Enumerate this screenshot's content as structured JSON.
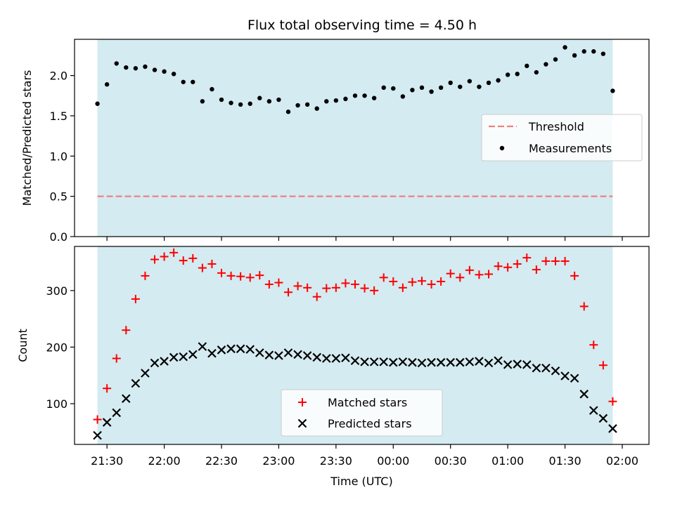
{
  "title": "Flux total observing time = 4.50 h",
  "colors": {
    "observing_span": "#d4ebf1",
    "threshold": "#f08080",
    "measurements": "#000000",
    "matched": "#ff0000",
    "predicted": "#000000"
  },
  "chart_data": [
    {
      "type": "scatter",
      "ylabel": "Matched/Predicted stars",
      "xlabel": "",
      "x_unit": "minutes after 21:00 UTC",
      "xlim": [
        "21:13",
        "02:14"
      ],
      "ylim": [
        0,
        2.45
      ],
      "yticks": [
        "0.0",
        "0.5",
        "1.0",
        "1.5",
        "2.0"
      ],
      "observing_span": [
        "21:25",
        "01:55"
      ],
      "threshold": 0.5,
      "legend": [
        "Threshold",
        "Measurements"
      ],
      "legend_placement": "center-right",
      "series": [
        {
          "name": "Measurements",
          "marker": "dot",
          "x": [
            "21:25",
            "21:30",
            "21:35",
            "21:40",
            "21:45",
            "21:50",
            "21:55",
            "22:00",
            "22:05",
            "22:10",
            "22:15",
            "22:20",
            "22:25",
            "22:30",
            "22:35",
            "22:40",
            "22:45",
            "22:50",
            "22:55",
            "23:00",
            "23:05",
            "23:10",
            "23:15",
            "23:20",
            "23:25",
            "23:30",
            "23:35",
            "23:40",
            "23:45",
            "23:50",
            "23:55",
            "00:00",
            "00:05",
            "00:10",
            "00:15",
            "00:20",
            "00:25",
            "00:30",
            "00:35",
            "00:40",
            "00:45",
            "00:50",
            "00:55",
            "01:00",
            "01:05",
            "01:10",
            "01:15",
            "01:20",
            "01:25",
            "01:30",
            "01:35",
            "01:40",
            "01:45",
            "01:50",
            "01:55"
          ],
          "values": [
            1.65,
            1.89,
            2.15,
            2.1,
            2.09,
            2.11,
            2.07,
            2.05,
            2.02,
            1.92,
            1.92,
            1.68,
            1.83,
            1.7,
            1.66,
            1.64,
            1.65,
            1.72,
            1.68,
            1.7,
            1.55,
            1.63,
            1.64,
            1.59,
            1.68,
            1.69,
            1.71,
            1.75,
            1.75,
            1.72,
            1.85,
            1.84,
            1.74,
            1.82,
            1.85,
            1.8,
            1.85,
            1.91,
            1.86,
            1.93,
            1.86,
            1.91,
            1.94,
            2.01,
            2.02,
            2.12,
            2.04,
            2.14,
            2.2,
            2.35,
            2.25,
            2.3,
            2.3,
            2.27,
            1.81
          ]
        }
      ]
    },
    {
      "type": "scatter",
      "ylabel": "Count",
      "xlabel": "Time (UTC)",
      "xlim": [
        "21:13",
        "02:14"
      ],
      "ylim": [
        28,
        378
      ],
      "yticks": [
        "100",
        "200",
        "300"
      ],
      "xticks": [
        "21:30",
        "22:00",
        "22:30",
        "23:00",
        "23:30",
        "00:00",
        "00:30",
        "01:00",
        "01:30",
        "02:00"
      ],
      "observing_span": [
        "21:25",
        "01:55"
      ],
      "legend": [
        "Matched stars",
        "Predicted stars"
      ],
      "legend_placement": "lower-center",
      "series": [
        {
          "name": "Matched stars",
          "marker": "plus",
          "x": [
            "21:25",
            "21:30",
            "21:35",
            "21:40",
            "21:45",
            "21:50",
            "21:55",
            "22:00",
            "22:05",
            "22:10",
            "22:15",
            "22:20",
            "22:25",
            "22:30",
            "22:35",
            "22:40",
            "22:45",
            "22:50",
            "22:55",
            "23:00",
            "23:05",
            "23:10",
            "23:15",
            "23:20",
            "23:25",
            "23:30",
            "23:35",
            "23:40",
            "23:45",
            "23:50",
            "23:55",
            "00:00",
            "00:05",
            "00:10",
            "00:15",
            "00:20",
            "00:25",
            "00:30",
            "00:35",
            "00:40",
            "00:45",
            "00:50",
            "00:55",
            "01:00",
            "01:05",
            "01:10",
            "01:15",
            "01:20",
            "01:25",
            "01:30",
            "01:35",
            "01:40",
            "01:45",
            "01:50",
            "01:55"
          ],
          "values": [
            72,
            127,
            180,
            230,
            285,
            326,
            355,
            360,
            367,
            353,
            357,
            340,
            347,
            331,
            326,
            325,
            323,
            327,
            311,
            314,
            297,
            308,
            305,
            289,
            304,
            305,
            313,
            311,
            304,
            300,
            323,
            316,
            305,
            315,
            317,
            311,
            316,
            330,
            323,
            336,
            328,
            329,
            343,
            341,
            347,
            358,
            337,
            352,
            352,
            352,
            326,
            272,
            204,
            168,
            104
          ]
        },
        {
          "name": "Predicted stars",
          "marker": "x",
          "x": [
            "21:25",
            "21:30",
            "21:35",
            "21:40",
            "21:45",
            "21:50",
            "21:55",
            "22:00",
            "22:05",
            "22:10",
            "22:15",
            "22:20",
            "22:25",
            "22:30",
            "22:35",
            "22:40",
            "22:45",
            "22:50",
            "22:55",
            "23:00",
            "23:05",
            "23:10",
            "23:15",
            "23:20",
            "23:25",
            "23:30",
            "23:35",
            "23:40",
            "23:45",
            "23:50",
            "23:55",
            "00:00",
            "00:05",
            "00:10",
            "00:15",
            "00:20",
            "00:25",
            "00:30",
            "00:35",
            "00:40",
            "00:45",
            "00:50",
            "00:55",
            "01:00",
            "01:05",
            "01:10",
            "01:15",
            "01:20",
            "01:25",
            "01:30",
            "01:35",
            "01:40",
            "01:45",
            "01:50",
            "01:55"
          ],
          "values": [
            44,
            67,
            84,
            109,
            136,
            154,
            172,
            175,
            182,
            183,
            187,
            201,
            189,
            195,
            197,
            197,
            196,
            190,
            186,
            185,
            190,
            187,
            185,
            182,
            180,
            180,
            181,
            176,
            174,
            174,
            174,
            173,
            174,
            173,
            172,
            173,
            173,
            173,
            173,
            174,
            175,
            172,
            176,
            169,
            170,
            169,
            163,
            163,
            158,
            149,
            145,
            117,
            88,
            74,
            56
          ]
        }
      ]
    }
  ]
}
